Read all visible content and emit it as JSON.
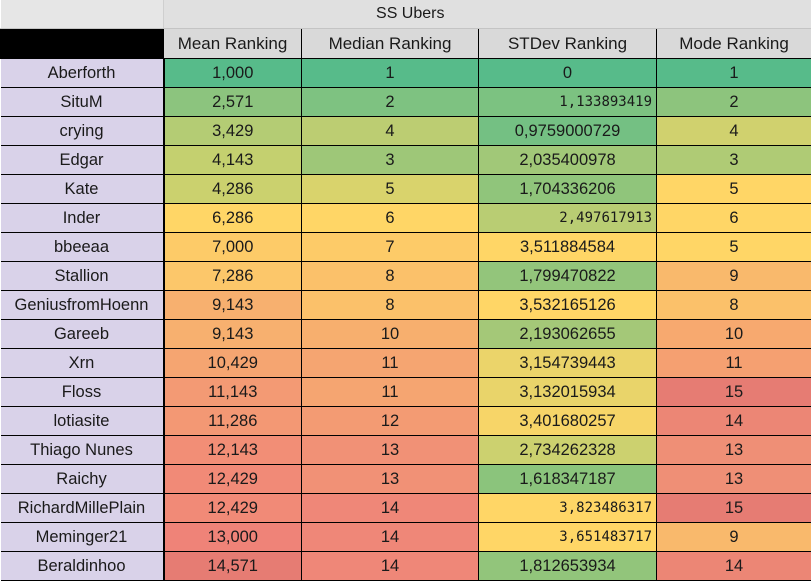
{
  "title": "SS Ubers",
  "headers": [
    "Mean Ranking",
    "Median Ranking",
    "STDev Ranking",
    "Mode Ranking"
  ],
  "rows": [
    {
      "name": "Aberforth",
      "mean": "1,000",
      "median": "1",
      "stdev": "0",
      "mode": "1",
      "stdev_mono": false
    },
    {
      "name": "SituM",
      "mean": "2,571",
      "median": "2",
      "stdev": "1,133893419",
      "mode": "2",
      "stdev_mono": true
    },
    {
      "name": "crying",
      "mean": "3,429",
      "median": "4",
      "stdev": "0,9759000729",
      "mode": "4",
      "stdev_mono": false
    },
    {
      "name": "Edgar",
      "mean": "4,143",
      "median": "3",
      "stdev": "2,035400978",
      "mode": "3",
      "stdev_mono": false
    },
    {
      "name": "Kate",
      "mean": "4,286",
      "median": "5",
      "stdev": "1,704336206",
      "mode": "5",
      "stdev_mono": false
    },
    {
      "name": "Inder",
      "mean": "6,286",
      "median": "6",
      "stdev": "2,497617913",
      "mode": "6",
      "stdev_mono": true
    },
    {
      "name": "bbeeaa",
      "mean": "7,000",
      "median": "7",
      "stdev": "3,511884584",
      "mode": "5",
      "stdev_mono": false
    },
    {
      "name": "Stallion",
      "mean": "7,286",
      "median": "8",
      "stdev": "1,799470822",
      "mode": "9",
      "stdev_mono": false
    },
    {
      "name": "GeniusfromHoenn",
      "mean": "9,143",
      "median": "8",
      "stdev": "3,532165126",
      "mode": "8",
      "stdev_mono": false
    },
    {
      "name": "Gareeb",
      "mean": "9,143",
      "median": "10",
      "stdev": "2,193062655",
      "mode": "10",
      "stdev_mono": false
    },
    {
      "name": "Xrn",
      "mean": "10,429",
      "median": "11",
      "stdev": "3,154739443",
      "mode": "11",
      "stdev_mono": false
    },
    {
      "name": "Floss",
      "mean": "11,143",
      "median": "11",
      "stdev": "3,132015934",
      "mode": "15",
      "stdev_mono": false
    },
    {
      "name": "lotiasite",
      "mean": "11,286",
      "median": "12",
      "stdev": "3,401680257",
      "mode": "14",
      "stdev_mono": false
    },
    {
      "name": "Thiago Nunes",
      "mean": "12,143",
      "median": "13",
      "stdev": "2,734262328",
      "mode": "13",
      "stdev_mono": false
    },
    {
      "name": "Raichy",
      "mean": "12,429",
      "median": "13",
      "stdev": "1,618347187",
      "mode": "13",
      "stdev_mono": false
    },
    {
      "name": "RichardMillePlain",
      "mean": "12,429",
      "median": "14",
      "stdev": "3,823486317",
      "mode": "15",
      "stdev_mono": true
    },
    {
      "name": "Meminger21",
      "mean": "13,000",
      "median": "14",
      "stdev": "3,651483717",
      "mode": "9",
      "stdev_mono": true
    },
    {
      "name": "Beraldinhoo",
      "mean": "14,571",
      "median": "14",
      "stdev": "1,812653934",
      "mode": "14",
      "stdev_mono": false
    }
  ],
  "colors": {
    "mean": [
      "#57bb8a",
      "#8cc47e",
      "#b4cc74",
      "#c4d06f",
      "#cbd16e",
      "#ffd666",
      "#fdcb68",
      "#fcc76a",
      "#f7b06f",
      "#f7b06f",
      "#f5a571",
      "#f39a74",
      "#f39874",
      "#f28e76",
      "#f18a77",
      "#f18a77",
      "#ef8378",
      "#e67c73"
    ],
    "median": [
      "#57bb8a",
      "#7ec281",
      "#bccd72",
      "#9ec778",
      "#d9d36c",
      "#ffd666",
      "#fdcb68",
      "#fbc16a",
      "#fbc16a",
      "#f7af6e",
      "#f5a571",
      "#f5a571",
      "#f39b73",
      "#f19176",
      "#f19176",
      "#ef8778",
      "#ef8778",
      "#ef8778"
    ],
    "stdev": [
      "#57bb8a",
      "#7cc281",
      "#74c083",
      "#a1c878",
      "#90c57b",
      "#b9cd73",
      "#ffd666",
      "#93c57b",
      "#ffd666",
      "#a4c878",
      "#ebd46a",
      "#e9d46a",
      "#f7d568",
      "#ccd16f",
      "#8bc47c",
      "#ffd666",
      "#ffd666",
      "#92c57b"
    ],
    "mode": [
      "#57bb8a",
      "#8dc47d",
      "#d0d16e",
      "#afcb75",
      "#ffd666",
      "#ffd666",
      "#ffd666",
      "#f9b96c",
      "#fbc16a",
      "#f7a96f",
      "#f5a071",
      "#e67c73",
      "#ec8675",
      "#ef8f76",
      "#ef8f76",
      "#e67c73",
      "#f9b96c",
      "#ec8675"
    ]
  }
}
